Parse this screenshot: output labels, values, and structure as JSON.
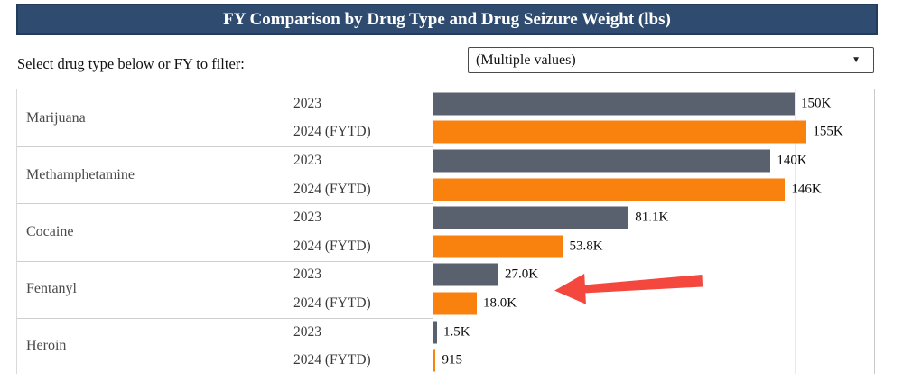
{
  "header": {
    "title": "FY Comparison by Drug Type and Drug Seizure Weight (lbs)",
    "bg_color": "#2F4C70"
  },
  "filter": {
    "label": "Select drug type below or FY to filter:",
    "dropdown_value": "(Multiple values)",
    "caret_icon": "▼"
  },
  "chart_data": {
    "type": "bar",
    "orientation": "horizontal",
    "title": "FY Comparison by Drug Type and Drug Seizure Weight (lbs)",
    "unit": "lbs",
    "categories": [
      "Marijuana",
      "Methamphetamine",
      "Cocaine",
      "Fentanyl",
      "Heroin"
    ],
    "series": [
      {
        "name": "2023",
        "color": "#59616E",
        "values": [
          150000,
          140000,
          81100,
          27000,
          1500
        ],
        "labels": [
          "150K",
          "140K",
          "81.1K",
          "27.0K",
          "1.5K"
        ]
      },
      {
        "name": "2024 (FYTD)",
        "color": "#F8820D",
        "values": [
          155000,
          146000,
          53800,
          18000,
          915
        ],
        "labels": [
          "155K",
          "146K",
          "53.8K",
          "18.0K",
          "915"
        ]
      }
    ],
    "xlim": [
      0,
      183000
    ],
    "gridlines": [
      50000,
      100000,
      150000
    ],
    "grid": true,
    "legend": false,
    "annotation": {
      "type": "arrow",
      "color": "#F4483E",
      "points_at": "Fentanyl bars"
    }
  }
}
